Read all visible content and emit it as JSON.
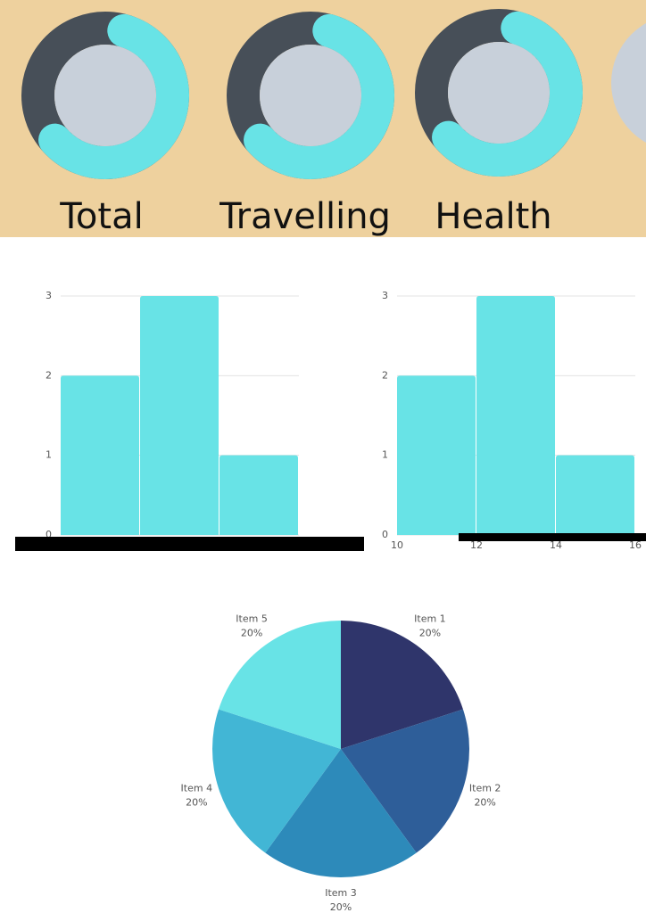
{
  "chart_data": [
    {
      "type": "donut",
      "title": "Total",
      "value": 59,
      "ylim": [
        0,
        100
      ],
      "colors": [
        "#474f58",
        "#68e3e6"
      ]
    },
    {
      "type": "donut",
      "title": "Travelling",
      "value": 59,
      "ylim": [
        0,
        100
      ],
      "colors": [
        "#474f58",
        "#68e3e6"
      ]
    },
    {
      "type": "donut",
      "title": "Health",
      "value": 59,
      "ylim": [
        0,
        100
      ],
      "colors": [
        "#474f58",
        "#68e3e6"
      ]
    },
    {
      "type": "bar",
      "categories": [
        null,
        null,
        null
      ],
      "values": [
        2,
        3,
        1
      ],
      "color": "#68e3e6",
      "ylim": [
        0,
        3
      ],
      "yticks": [
        0,
        1,
        2,
        3
      ],
      "grid": true
    },
    {
      "type": "histogram",
      "bins": [
        10,
        12,
        14,
        16
      ],
      "values": [
        2,
        3,
        1
      ],
      "color": "#68e3e6",
      "xlim": [
        10,
        16
      ],
      "xticks": [
        10,
        12,
        14,
        16
      ],
      "ylim": [
        0,
        3
      ],
      "yticks": [
        0,
        1,
        2,
        3
      ],
      "grid": true
    },
    {
      "type": "pie",
      "categories": [
        "Item 1",
        "Item 2",
        "Item 3",
        "Item 4",
        "Item 5"
      ],
      "values": [
        20,
        20,
        20,
        20,
        20
      ],
      "value_labels": [
        "20%",
        "20%",
        "20%",
        "20%",
        "20%"
      ],
      "colors": [
        "#2f356b",
        "#2e5e99",
        "#2d8aba",
        "#42b6d5",
        "#68e3e6"
      ]
    }
  ]
}
